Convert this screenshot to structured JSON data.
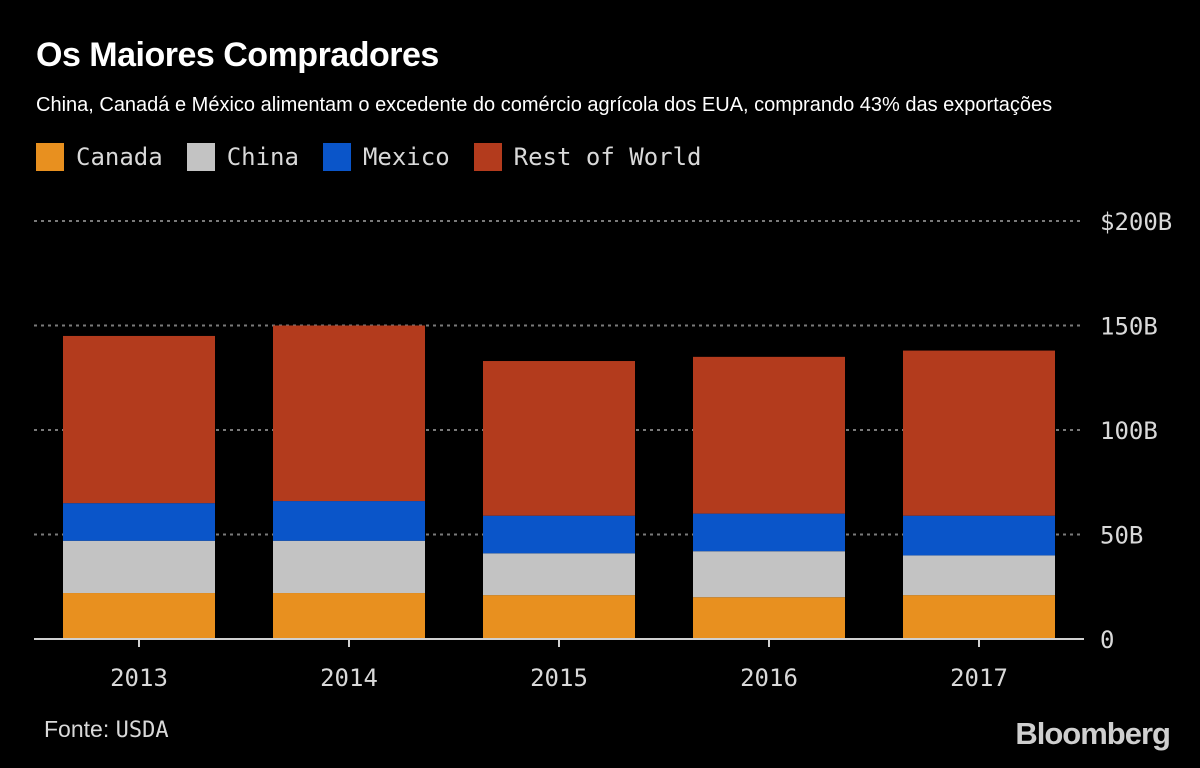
{
  "title": "Os Maiores Compradores",
  "subtitle": "China, Canadá e México alimentam o excedente do comércio agrícola dos EUA, comprando 43% das exportações",
  "source_label": "Fonte:",
  "source_value": "USDA",
  "logo_text": "Bloomberg",
  "colors": {
    "Canada": "#e8901f",
    "China": "#c3c3c3",
    "Mexico": "#0a55c9",
    "Rest of World": "#b33b1d",
    "grid": "#7a7a7a",
    "axis": "#d0d0d0"
  },
  "chart_data": {
    "type": "bar",
    "stacked": true,
    "categories": [
      "2013",
      "2014",
      "2015",
      "2016",
      "2017"
    ],
    "series": [
      {
        "name": "Canada",
        "values": [
          22,
          22,
          21,
          20,
          21
        ]
      },
      {
        "name": "China",
        "values": [
          25,
          25,
          20,
          22,
          19
        ]
      },
      {
        "name": "Mexico",
        "values": [
          18,
          19,
          18,
          18,
          19
        ]
      },
      {
        "name": "Rest of World",
        "values": [
          80,
          84,
          74,
          75,
          79
        ]
      }
    ],
    "ylim": [
      0,
      200
    ],
    "yticks": [
      0,
      50,
      100,
      150,
      200
    ],
    "ytick_labels": [
      "0",
      "50B",
      "100B",
      "150B",
      "$200B"
    ],
    "grid": true,
    "legend_position": "top-left",
    "y_axis_side": "right"
  }
}
